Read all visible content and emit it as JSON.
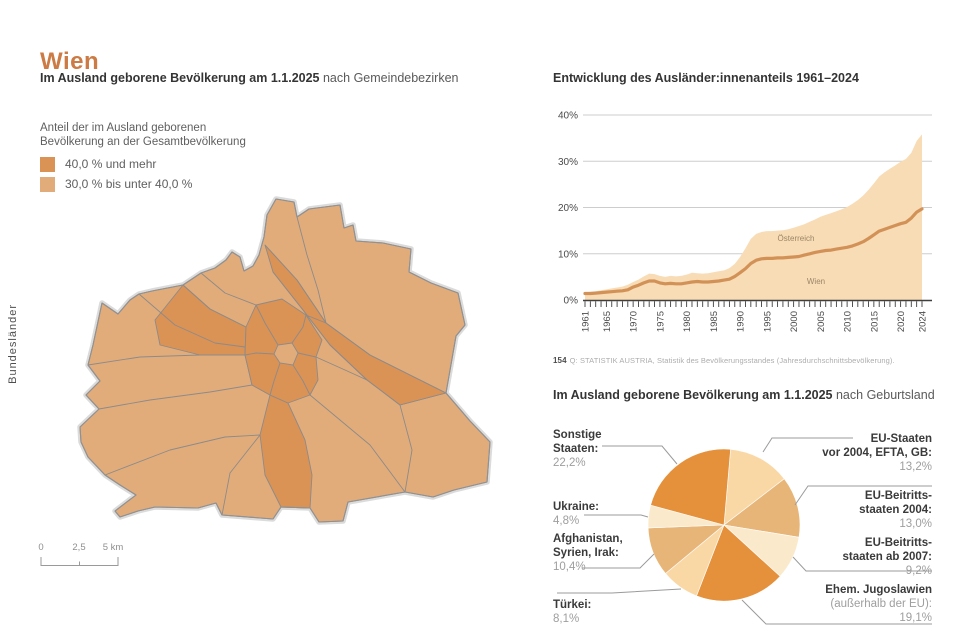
{
  "title": "Wien",
  "side_label": "Bundesländer",
  "colors": {
    "accent": "#CC7B45",
    "text_dark": "#343434",
    "text_gray": "#5f5f5f",
    "footnote_gray": "#adadad",
    "grid_line": "#cdcdcd",
    "axis_dark": "#3f3f3f",
    "area_fill": "#F8DCB5",
    "line_stroke": "#D29257",
    "series_label": "#9c8668",
    "map_light": "#E2AC7A",
    "map_dark": "#DB9255",
    "callout_gray": "#9b9b9b",
    "pie_dark": "#E5913C",
    "pie_medium": "#E7B577",
    "pie_light": "#F9D8A6",
    "pie_xlight": "#FBE9CB"
  },
  "map_section": {
    "title_bold": "Im Ausland geborene Bevölkerung am 1.1.2025",
    "title_regular": "nach Gemeindebezirken",
    "legend_caption_lines": [
      "Anteil der im Ausland geborenen",
      "Bevölkerung an der Gesamtbevölkerung"
    ],
    "legend_items": [
      {
        "label": "40,0 % und mehr",
        "color": "#DB9255"
      },
      {
        "label": "30,0 % bis unter 40,0 %",
        "color": "#E2AC7A"
      }
    ],
    "scale_bar": {
      "labels": [
        "0",
        "2,5",
        "5 km"
      ]
    }
  },
  "footnote": {
    "number": "154",
    "text": "Q: STATISTIK AUSTRIA, Statistik des Bevölkerungsstandes (Jahresdurchschnittsbevölkerung)."
  },
  "chart_data": [
    {
      "type": "area",
      "title": "Entwicklung des Ausländer:innenanteils 1961–2024",
      "x_start": 1961,
      "x_end": 2024,
      "ylim": [
        0,
        40
      ],
      "y_ticks": [
        "0%",
        "10%",
        "20%",
        "30%",
        "40%"
      ],
      "x_labeled": [
        1961,
        1965,
        1970,
        1975,
        1980,
        1985,
        1990,
        1995,
        2000,
        2005,
        2010,
        2015,
        2020,
        2024
      ],
      "grid": true,
      "legend_position": "inline-labels",
      "series": [
        {
          "name": "Wien",
          "type": "area",
          "values": [
            1.7,
            1.8,
            1.9,
            2.1,
            2.3,
            2.5,
            2.7,
            2.9,
            3.3,
            3.9,
            4.4,
            5.1,
            5.7,
            5.6,
            5.2,
            5.0,
            5.2,
            5.1,
            5.2,
            5.5,
            5.9,
            5.8,
            5.7,
            5.8,
            6.0,
            6.2,
            6.4,
            6.9,
            7.8,
            9.3,
            11.2,
            13.2,
            14.3,
            14.7,
            14.9,
            14.9,
            15.0,
            15.1,
            15.3,
            15.6,
            16.0,
            16.4,
            16.9,
            17.4,
            18.0,
            18.4,
            18.8,
            19.2,
            19.6,
            20.1,
            20.8,
            21.6,
            22.6,
            23.8,
            25.2,
            26.7,
            27.6,
            28.4,
            29.1,
            29.9,
            30.5,
            31.8,
            34.4,
            35.8
          ]
        },
        {
          "name": "Österreich",
          "type": "line",
          "values": [
            1.4,
            1.4,
            1.5,
            1.6,
            1.7,
            1.8,
            1.9,
            2.0,
            2.2,
            2.8,
            3.2,
            3.7,
            4.1,
            4.1,
            3.7,
            3.5,
            3.6,
            3.5,
            3.5,
            3.7,
            3.9,
            4.0,
            3.9,
            3.9,
            4.0,
            4.1,
            4.3,
            4.5,
            5.1,
            5.9,
            6.8,
            7.9,
            8.6,
            8.9,
            9.0,
            9.0,
            9.1,
            9.1,
            9.2,
            9.3,
            9.4,
            9.7,
            10.0,
            10.3,
            10.5,
            10.7,
            10.8,
            11.0,
            11.2,
            11.4,
            11.7,
            12.1,
            12.6,
            13.3,
            14.1,
            14.9,
            15.3,
            15.7,
            16.1,
            16.5,
            16.8,
            17.7,
            19.0,
            19.7
          ]
        }
      ]
    },
    {
      "type": "pie",
      "title_bold": "Im Ausland geborene Bevölkerung am 1.1.2025",
      "title_regular": "nach Geburtsland",
      "start_angle_deg": 5,
      "slices": [
        {
          "name_lines": [
            "EU-Staaten",
            "vor 2004, EFTA, GB:"
          ],
          "sub_lines": [],
          "value": 13.2,
          "value_label": "13,2%",
          "shade": "pie_light"
        },
        {
          "name_lines": [
            "EU-Beitritts-",
            "staaten 2004:"
          ],
          "sub_lines": [],
          "value": 13.0,
          "value_label": "13,0%",
          "shade": "pie_medium"
        },
        {
          "name_lines": [
            "EU-Beitritts-",
            "staaten ab 2007:"
          ],
          "sub_lines": [],
          "value": 9.2,
          "value_label": "9,2%",
          "shade": "pie_xlight"
        },
        {
          "name_lines": [
            "Ehem. Jugoslawien"
          ],
          "sub_lines": [
            "(außerhalb der EU):"
          ],
          "value": 19.1,
          "value_label": "19,1%",
          "shade": "pie_dark"
        },
        {
          "name_lines": [
            "Türkei:"
          ],
          "sub_lines": [],
          "value": 8.1,
          "value_label": "8,1%",
          "shade": "pie_light"
        },
        {
          "name_lines": [
            "Afghanistan,",
            "Syrien, Irak:"
          ],
          "sub_lines": [],
          "value": 10.4,
          "value_label": "10,4%",
          "shade": "pie_medium"
        },
        {
          "name_lines": [
            "Ukraine:"
          ],
          "sub_lines": [],
          "value": 4.8,
          "value_label": "4,8%",
          "shade": "pie_xlight"
        },
        {
          "name_lines": [
            "Sonstige",
            "Staaten:"
          ],
          "sub_lines": [],
          "value": 22.2,
          "value_label": "22,2%",
          "shade": "pie_dark"
        }
      ]
    }
  ]
}
